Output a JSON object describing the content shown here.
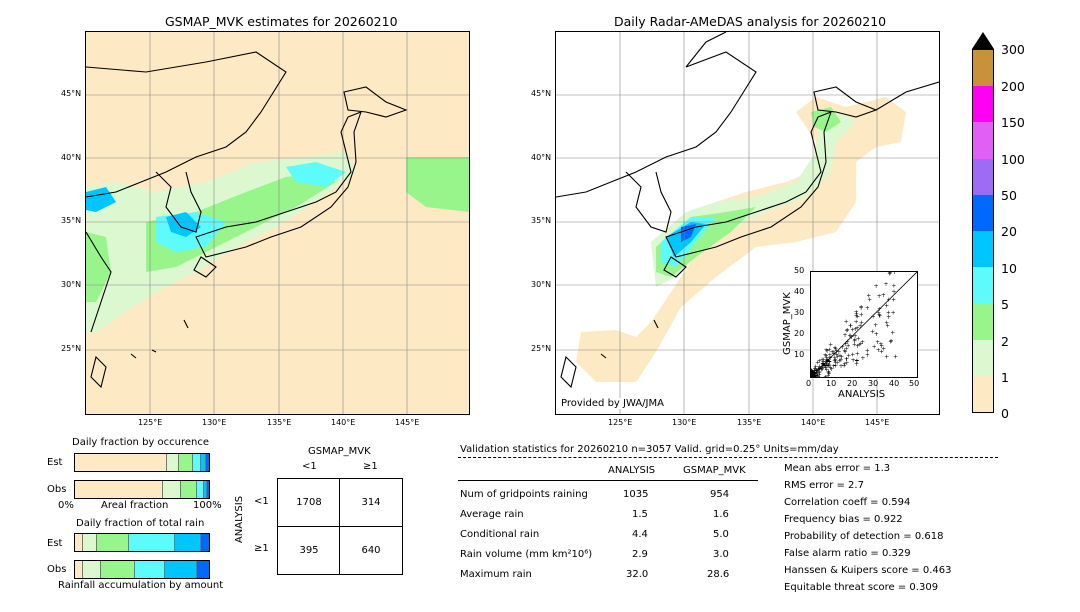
{
  "left_map": {
    "title": "GSMAP_MVK estimates for 20260210",
    "lat_labels": [
      "45°N",
      "40°N",
      "35°N",
      "30°N",
      "25°N"
    ],
    "lon_labels": [
      "125°E",
      "130°E",
      "135°E",
      "140°E",
      "145°E"
    ]
  },
  "right_map": {
    "title": "Daily Radar-AMeDAS analysis for 20260210",
    "lat_labels": [
      "45°N",
      "40°N",
      "35°N",
      "30°N",
      "25°N"
    ],
    "lon_labels": [
      "125°E",
      "130°E",
      "135°E",
      "140°E",
      "145°E"
    ],
    "credit": "Provided by JWA/JMA"
  },
  "colorbar": {
    "levels": [
      "0",
      "1",
      "2",
      "5",
      "10",
      "20",
      "50",
      "100",
      "150",
      "200",
      "300"
    ],
    "colors": [
      "#fde9c3",
      "#dcf8d0",
      "#98f58c",
      "#5dfbfb",
      "#00c6ff",
      "#0068ff",
      "#9e6bf5",
      "#e060f5",
      "#ff00f5",
      "#c9913a"
    ]
  },
  "scatter": {
    "xlabel": "ANALYSIS",
    "ylabel": "GSMAP_MVK",
    "ticks": [
      "0",
      "10",
      "20",
      "30",
      "40",
      "50"
    ]
  },
  "fraction_occurrence": {
    "title": "Daily fraction by occurence",
    "row_est": "Est",
    "row_obs": "Obs",
    "axis_left": "0%",
    "axis_mid": "Areal fraction",
    "axis_right": "100%"
  },
  "fraction_rain": {
    "title": "Daily fraction of total rain",
    "row_est": "Est",
    "row_obs": "Obs",
    "axis_caption": "Rainfall accumulation by amount"
  },
  "contingency": {
    "col_header": "GSMAP_MVK",
    "col_lt": "<1",
    "col_ge": "≥1",
    "row_header": "ANALYSIS",
    "row_lt": "<1",
    "row_ge": "≥1",
    "c11": "1708",
    "c12": "314",
    "c21": "395",
    "c22": "640"
  },
  "validation": {
    "header": "Validation statistics for 20260210  n=3057 Valid. grid=0.25° Units=mm/day",
    "col_analysis": "ANALYSIS",
    "col_gsmap": "GSMAP_MVK",
    "rows": [
      {
        "label": "Num of gridpoints raining",
        "analysis": "1035",
        "gsmap": "954"
      },
      {
        "label": "Average rain",
        "analysis": "1.5",
        "gsmap": "1.6"
      },
      {
        "label": "Conditional rain",
        "analysis": "4.4",
        "gsmap": "5.0"
      },
      {
        "label": "Rain volume (mm km²10⁶)",
        "analysis": "2.9",
        "gsmap": "3.0"
      },
      {
        "label": "Maximum rain",
        "analysis": "32.0",
        "gsmap": "28.6"
      }
    ],
    "scores": [
      "Mean abs error =    1.3",
      "RMS error =    2.7",
      "Correlation coeff =  0.594",
      "Frequency bias =  0.922",
      "Probability of detection =  0.618",
      "False alarm ratio =  0.329",
      "Hanssen & Kuipers score =  0.463",
      "Equitable threat score =  0.309"
    ]
  },
  "chart_data": {
    "type": "table",
    "title": "Validation statistics for 20260210",
    "n": 3057,
    "columns": [
      "ANALYSIS",
      "GSMAP_MVK"
    ],
    "rows": [
      {
        "name": "Num of gridpoints raining",
        "values": [
          1035,
          954
        ]
      },
      {
        "name": "Average rain",
        "values": [
          1.5,
          1.6
        ]
      },
      {
        "name": "Conditional rain",
        "values": [
          4.4,
          5.0
        ]
      },
      {
        "name": "Rain volume (mm km2 10^6)",
        "values": [
          2.9,
          3.0
        ]
      },
      {
        "name": "Maximum rain",
        "values": [
          32.0,
          28.6
        ]
      }
    ],
    "contingency": [
      [
        1708,
        314
      ],
      [
        395,
        640
      ]
    ],
    "scores": {
      "mean_abs_error": 1.3,
      "rms_error": 2.7,
      "correlation": 0.594,
      "frequency_bias": 0.922,
      "probability_of_detection": 0.618,
      "false_alarm_ratio": 0.329,
      "hanssen_kuipers": 0.463,
      "equitable_threat": 0.309
    }
  }
}
